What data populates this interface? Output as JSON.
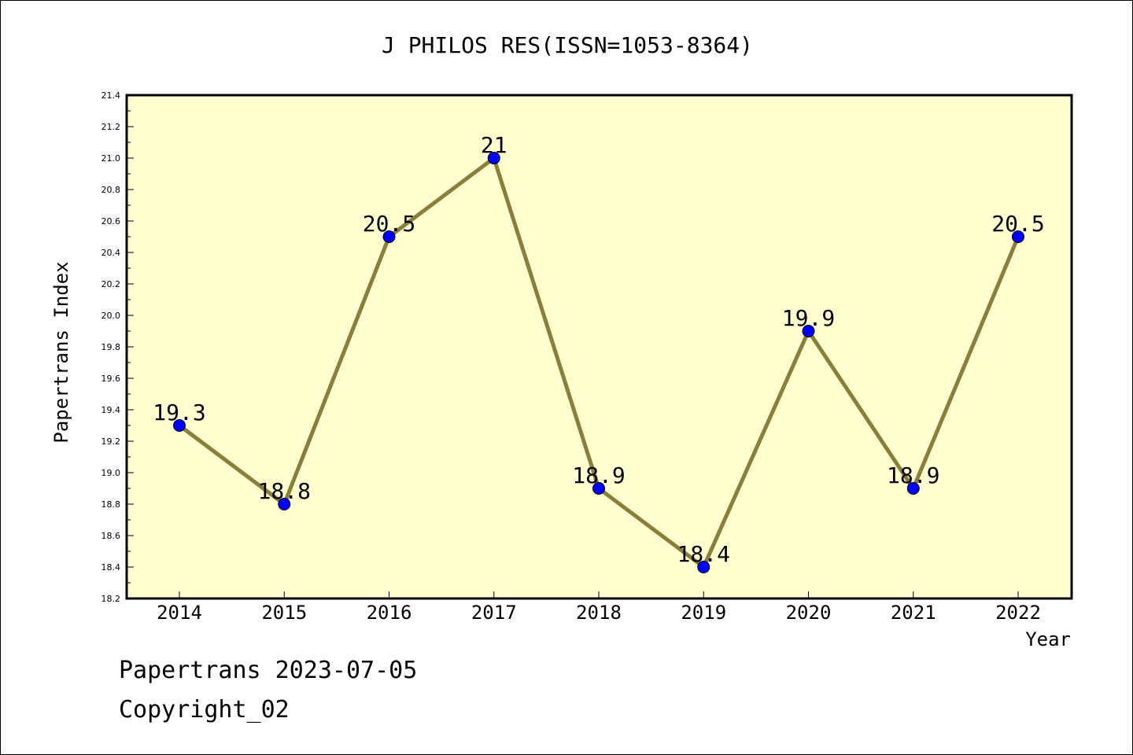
{
  "chart_data": {
    "type": "line",
    "title": "J PHILOS RES(ISSN=1053-8364)",
    "xlabel": "Year",
    "ylabel": "Papertrans Index",
    "categories": [
      "2014",
      "2015",
      "2016",
      "2017",
      "2018",
      "2019",
      "2020",
      "2021",
      "2022"
    ],
    "values": [
      19.3,
      18.8,
      20.5,
      21.0,
      18.9,
      18.4,
      19.9,
      18.9,
      20.5
    ],
    "data_labels": [
      "19.3",
      "18.8",
      "20.5",
      "21",
      "18.9",
      "18.4",
      "19.9",
      "18.9",
      "20.5"
    ],
    "ylim": [
      18.2,
      21.4
    ],
    "y_ticks": [
      "18.2",
      "18.4",
      "18.6",
      "18.8",
      "19.0",
      "19.2",
      "19.4",
      "19.6",
      "19.8",
      "20.0",
      "20.2",
      "20.4",
      "20.6",
      "20.8",
      "21.0",
      "21.2",
      "21.4"
    ],
    "grid": false,
    "colors": {
      "line": "#8b7d3a",
      "marker": "#0000ff",
      "plot_background": "#ffffd0"
    }
  },
  "footer": {
    "date_text": "Papertrans 2023-07-05",
    "copyright_text": "Copyright_02"
  }
}
